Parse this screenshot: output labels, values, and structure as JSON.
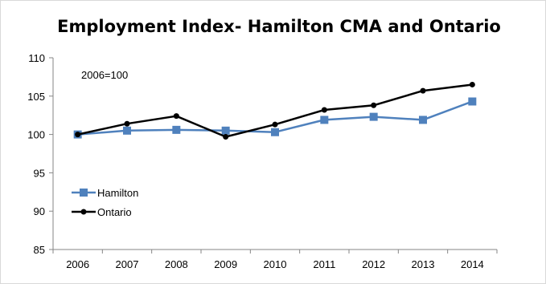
{
  "chart_data": {
    "type": "line",
    "title": "Employment Index- Hamilton CMA and Ontario",
    "annotation": "2006=100",
    "xlabel": "",
    "ylabel": "",
    "categories": [
      "2006",
      "2007",
      "2008",
      "2009",
      "2010",
      "2011",
      "2012",
      "2013",
      "2014"
    ],
    "ylim": [
      85,
      110
    ],
    "yticks": [
      85,
      90,
      95,
      100,
      105,
      110
    ],
    "grid": false,
    "legend_position": "left",
    "series": [
      {
        "name": "Hamilton",
        "color": "#4f81bd",
        "marker": "square",
        "values": [
          100.0,
          100.5,
          100.6,
          100.5,
          100.3,
          101.9,
          102.3,
          101.9,
          104.3
        ]
      },
      {
        "name": "Ontario",
        "color": "#000000",
        "marker": "circle",
        "values": [
          100.0,
          101.4,
          102.4,
          99.7,
          101.3,
          103.2,
          103.8,
          105.7,
          106.5
        ]
      }
    ]
  }
}
